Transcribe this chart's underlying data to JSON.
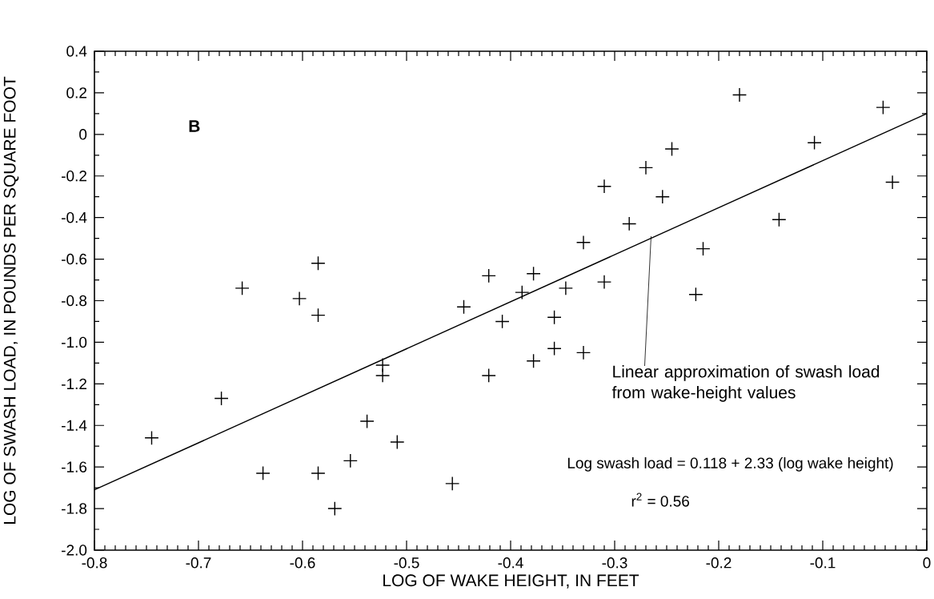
{
  "chart_data": {
    "type": "scatter",
    "xlabel": "LOG OF WAKE HEIGHT, IN FEET",
    "ylabel": "LOG OF SWASH LOAD, IN POUNDS PER SQUARE FOOT",
    "xlim": [
      -0.8,
      0
    ],
    "ylim": [
      -2.0,
      0.4
    ],
    "xticks": [
      {
        "value": -0.8,
        "label": "-0.8"
      },
      {
        "value": -0.7,
        "label": "-0.7"
      },
      {
        "value": -0.6,
        "label": "-0.6"
      },
      {
        "value": -0.5,
        "label": "-0.5"
      },
      {
        "value": -0.4,
        "label": "-0.4"
      },
      {
        "value": -0.3,
        "label": "-0.3"
      },
      {
        "value": -0.2,
        "label": "-0.2"
      },
      {
        "value": -0.1,
        "label": "-0.1"
      },
      {
        "value": 0,
        "label": "0"
      }
    ],
    "yticks": [
      {
        "value": -2.0,
        "label": "-2.0"
      },
      {
        "value": -1.8,
        "label": "-1.8"
      },
      {
        "value": -1.6,
        "label": "-1.6"
      },
      {
        "value": -1.4,
        "label": "-1.4"
      },
      {
        "value": -1.2,
        "label": "-1.2"
      },
      {
        "value": -1.0,
        "label": "-1.0"
      },
      {
        "value": -0.8,
        "label": "-0.8"
      },
      {
        "value": -0.6,
        "label": "-0.6"
      },
      {
        "value": -0.4,
        "label": "-0.4"
      },
      {
        "value": -0.2,
        "label": "-0.2"
      },
      {
        "value": 0,
        "label": "0"
      },
      {
        "value": 0.2,
        "label": "0.2"
      },
      {
        "value": 0.4,
        "label": "0.4"
      }
    ],
    "series": [
      {
        "marker": "cross",
        "color": "#000000",
        "x": [
          -0.745,
          -0.678,
          -0.658,
          -0.638,
          -0.603,
          -0.585,
          -0.585,
          -0.585,
          -0.569,
          -0.554,
          -0.538,
          -0.523,
          -0.523,
          -0.509,
          -0.456,
          -0.445,
          -0.421,
          -0.421,
          -0.408,
          -0.389,
          -0.378,
          -0.378,
          -0.358,
          -0.358,
          -0.347,
          -0.33,
          -0.33,
          -0.31,
          -0.31,
          -0.286,
          -0.27,
          -0.254,
          -0.245,
          -0.222,
          -0.215,
          -0.18,
          -0.142,
          -0.108,
          -0.042,
          -0.033
        ],
        "values": [
          -1.46,
          -1.27,
          -0.74,
          -1.63,
          -0.79,
          -0.62,
          -0.87,
          -1.63,
          -1.8,
          -1.57,
          -1.38,
          -1.11,
          -1.16,
          -1.48,
          -1.68,
          -0.83,
          -0.68,
          -1.16,
          -0.9,
          -0.76,
          -0.67,
          -1.09,
          -0.88,
          -1.03,
          -0.74,
          -0.52,
          -1.05,
          -0.25,
          -0.71,
          -0.43,
          -0.16,
          -0.3,
          -0.07,
          -0.77,
          -0.55,
          0.19,
          -0.41,
          -0.04,
          0.13,
          -0.23
        ]
      },
      {
        "type": "line",
        "marker": "none",
        "line_style": "solid",
        "color": "#000000",
        "x": [
          -0.8,
          0
        ],
        "values": [
          -1.71,
          0.1
        ]
      }
    ],
    "annotations": [
      "B",
      {
        "text": "Linear approximation of swash load from wake-height values",
        "x": -0.265,
        "y": -0.49
      },
      "Log swash load = 0.118 + 2.33 (log wake height)",
      "r$^{2}$ = 0.56"
    ]
  }
}
